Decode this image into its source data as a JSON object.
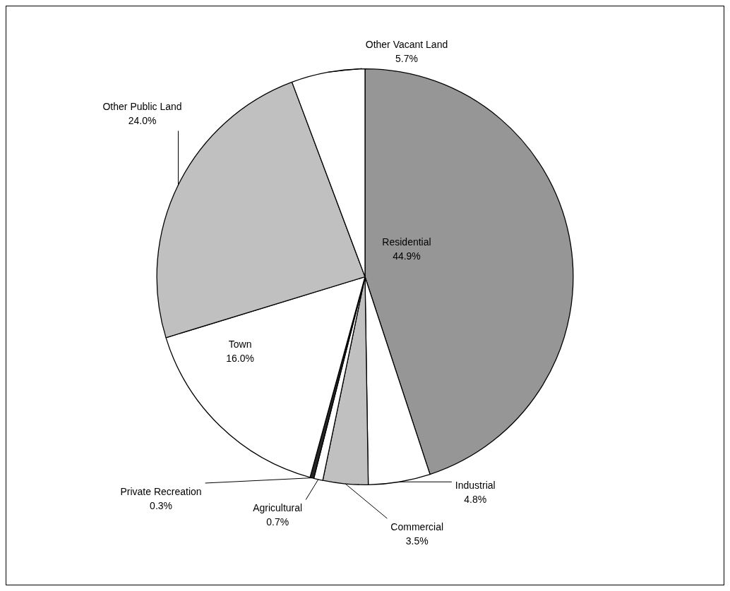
{
  "chart_data": {
    "type": "pie",
    "categories": [
      "Residential",
      "Industrial",
      "Commercial",
      "Agricultural",
      "Private Recreation",
      "Town",
      "Other Public Land",
      "Other Vacant Land"
    ],
    "values": [
      44.9,
      4.8,
      3.5,
      0.7,
      0.3,
      16.0,
      24.0,
      5.7
    ],
    "value_labels": [
      "44.9%",
      "4.8%",
      "3.5%",
      "0.7%",
      "0.3%",
      "16.0%",
      "24.0%",
      "5.7%"
    ],
    "colors": [
      "#969696",
      "#ffffff",
      "#c0c0c0",
      "#ffffff",
      "#262626",
      "#ffffff",
      "#c0c0c0",
      "#ffffff"
    ],
    "legend": false
  }
}
